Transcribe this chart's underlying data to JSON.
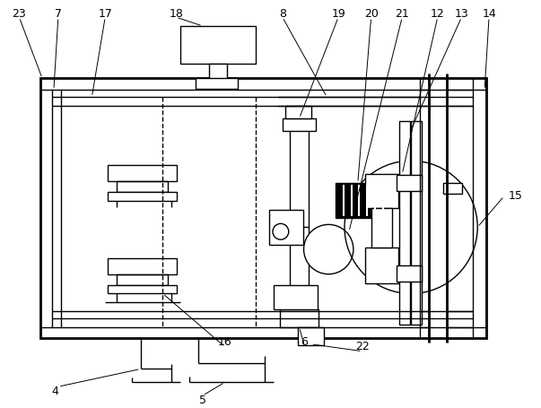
{
  "bg_color": "#ffffff",
  "lc": "#000000",
  "lw": 1.0,
  "tlw": 2.0,
  "fig_w": 6.03,
  "fig_h": 4.55,
  "dpi": 100
}
